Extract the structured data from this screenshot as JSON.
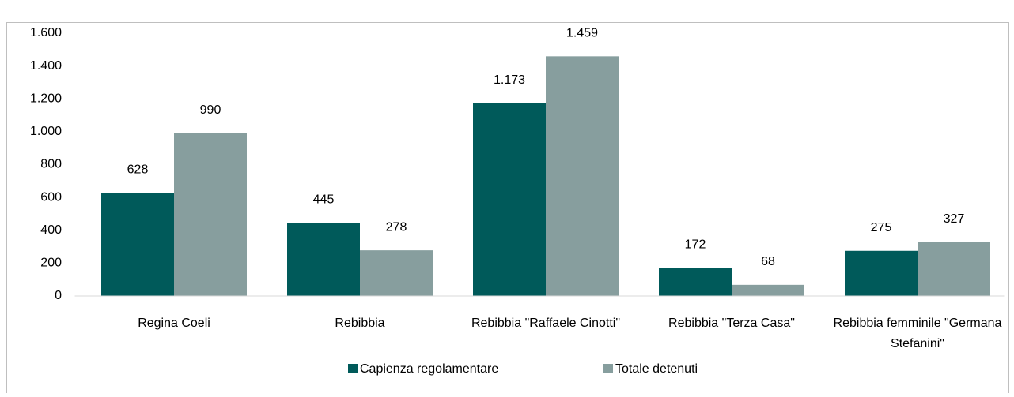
{
  "chart_data": {
    "type": "bar",
    "categories": [
      "Regina Coeli",
      "Rebibbia",
      "Rebibbia \"Raffaele Cinotti\"",
      "Rebibbia \"Terza Casa\"",
      "Rebibbia femminile \"Germana Stefanini\""
    ],
    "series": [
      {
        "name": "Capienza regolamentare",
        "color": "#005a5a",
        "values": [
          628,
          445,
          1173,
          172,
          275
        ],
        "value_labels": [
          "628",
          "445",
          "1.173",
          "172",
          "275"
        ]
      },
      {
        "name": "Totale detenuti",
        "color": "#879e9e",
        "values": [
          990,
          278,
          1459,
          68,
          327
        ],
        "value_labels": [
          "990",
          "278",
          "1.459",
          "68",
          "327"
        ]
      }
    ],
    "ylim": [
      0,
      1600
    ],
    "yticks": [
      0,
      200,
      400,
      600,
      800,
      {
        "value": 1000,
        "label": "1.000"
      },
      {
        "value": 1200,
        "label": "1.200"
      },
      {
        "value": 1400,
        "label": "1.400"
      },
      {
        "value": 1600,
        "label": "1.600"
      }
    ],
    "grid": false,
    "legend": "bottom"
  }
}
